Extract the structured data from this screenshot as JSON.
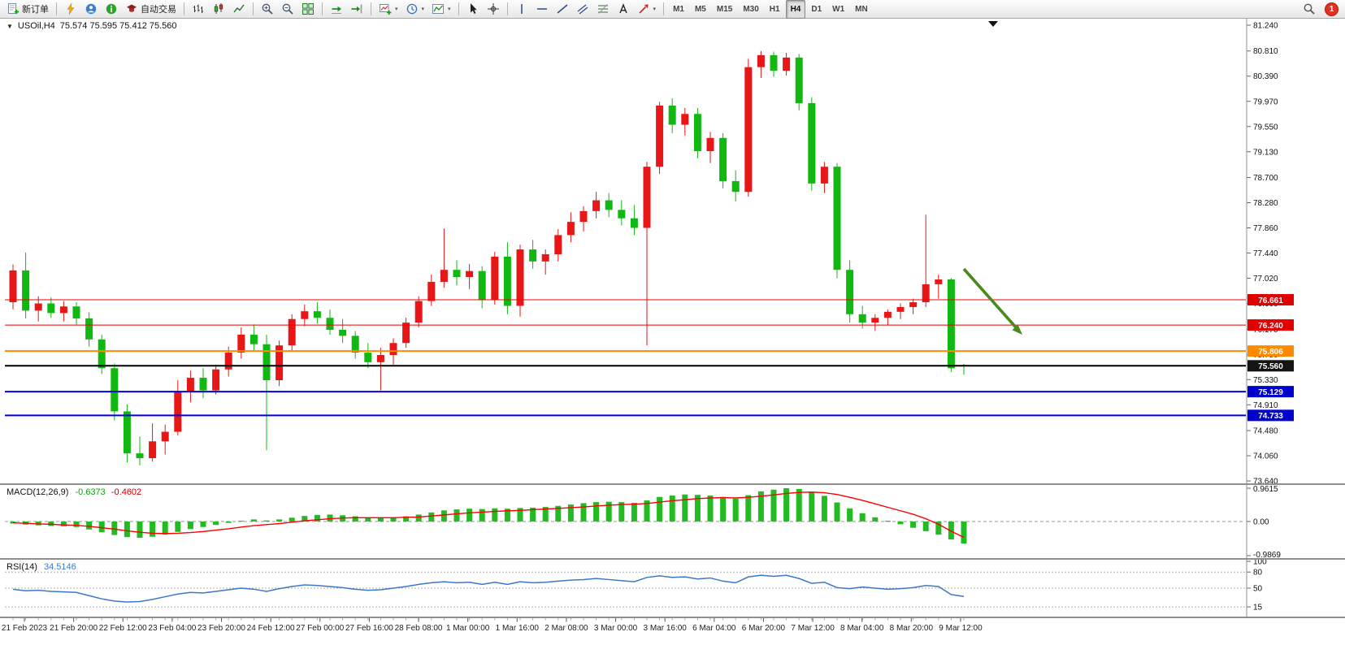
{
  "toolbar": {
    "buttons": [
      {
        "name": "new-order-button",
        "icon": "new-order-icon",
        "label": "新订单"
      },
      {
        "sep": true
      },
      {
        "name": "quick-trade-button",
        "icon": "lightning-icon"
      },
      {
        "name": "community-button",
        "icon": "community-icon"
      },
      {
        "name": "news-button",
        "icon": "info-icon"
      },
      {
        "name": "autotrading-button",
        "icon": "autotrading-icon",
        "label": "自动交易"
      },
      {
        "sep": true
      },
      {
        "name": "bar-chart-button",
        "icon": "bars-icon"
      },
      {
        "name": "candlestick-chart-button",
        "icon": "candles-icon"
      },
      {
        "name": "line-chart-button",
        "icon": "line-icon"
      },
      {
        "sep": true
      },
      {
        "name": "zoom-in-button",
        "icon": "zoom-in-icon"
      },
      {
        "name": "zoom-out-button",
        "icon": "zoom-out-icon"
      },
      {
        "name": "tile-windows-button",
        "icon": "tile-icon"
      },
      {
        "sep": true
      },
      {
        "name": "auto-scroll-button",
        "icon": "autoscroll-icon"
      },
      {
        "name": "chart-shift-button",
        "icon": "shift-icon"
      },
      {
        "sep": true
      },
      {
        "name": "new-chart-button",
        "icon": "new-chart-icon",
        "caret": true
      },
      {
        "name": "profiles-button",
        "icon": "profiles-icon",
        "caret": true
      },
      {
        "name": "templates-button",
        "icon": "templates-icon",
        "caret": true
      },
      {
        "sep": true
      },
      {
        "name": "cursor-button",
        "icon": "cursor-icon"
      },
      {
        "name": "crosshair-button",
        "icon": "crosshair-icon"
      },
      {
        "sep": true
      },
      {
        "name": "vertical-line-button",
        "icon": "vline-icon"
      },
      {
        "name": "horizontal-line-button",
        "icon": "hline-icon"
      },
      {
        "name": "trendline-button",
        "icon": "trend-icon"
      },
      {
        "name": "equidistant-channel-button",
        "icon": "channel-icon"
      },
      {
        "name": "fibonacci-button",
        "icon": "fibo-icon"
      },
      {
        "name": "text-label-button",
        "icon": "text-icon"
      },
      {
        "name": "arrows-button",
        "icon": "arrows-icon",
        "caret": true
      },
      {
        "sep": true
      }
    ],
    "timeframes": [
      "M1",
      "M5",
      "M15",
      "M30",
      "H1",
      "H4",
      "D1",
      "W1",
      "MN"
    ],
    "active_timeframe": "H4",
    "notification_count": "1"
  },
  "chart_header": {
    "expander": "▼",
    "symbol": "USOil,H4",
    "ohlc": "75.574 75.595 75.412 75.560"
  },
  "indicators": {
    "macd": {
      "name": "MACD(12,26,9)",
      "value_main": "-0.6373",
      "value_signal": "-0.4602",
      "axis_max": "0.9615",
      "axis_zero": "0.00",
      "axis_min": "-0.9869"
    },
    "rsi": {
      "name": "RSI(14)",
      "value": "34.5146",
      "axis_labels": [
        "100",
        "80",
        "50",
        "15"
      ],
      "levels": [
        80,
        50,
        15
      ]
    }
  },
  "price_axis": {
    "labels": [
      "81.240",
      "80.810",
      "80.390",
      "79.970",
      "79.550",
      "79.130",
      "78.700",
      "78.280",
      "77.860",
      "77.440",
      "77.020",
      "76.600",
      "76.170",
      "75.750",
      "75.330",
      "74.910",
      "74.480",
      "74.060",
      "73.640"
    ]
  },
  "levels": [
    {
      "label": "76.661",
      "price": 76.661,
      "color": "#ee0000",
      "badge": "#e00000",
      "width": 1
    },
    {
      "label": "76.240",
      "price": 76.24,
      "color": "#ee0000",
      "badge": "#e00000",
      "width": 1
    },
    {
      "label": "75.806",
      "price": 75.806,
      "color": "#ff8a00",
      "badge": "#ff8a00",
      "width": 2
    },
    {
      "label": "75.560",
      "price": 75.56,
      "color": "#000000",
      "badge": "#141414",
      "width": 2
    },
    {
      "label": "75.129",
      "price": 75.129,
      "color": "#0000dd",
      "badge": "#0000cc",
      "width": 2
    },
    {
      "label": "74.733",
      "price": 74.733,
      "color": "#0000dd",
      "badge": "#0000cc",
      "width": 2
    }
  ],
  "time_axis": [
    "21 Feb 2023",
    "21 Feb 20:00",
    "22 Feb 12:00",
    "23 Feb 04:00",
    "23 Feb 20:00",
    "24 Feb 12:00",
    "27 Feb 00:00",
    "27 Feb 16:00",
    "28 Feb 08:00",
    "1 Mar 00:00",
    "1 Mar 16:00",
    "2 Mar 08:00",
    "3 Mar 00:00",
    "3 Mar 16:00",
    "6 Mar 04:00",
    "6 Mar 20:00",
    "7 Mar 12:00",
    "8 Mar 04:00",
    "8 Mar 20:00",
    "9 Mar 12:00"
  ],
  "annotation": {
    "type": "trend-arrow",
    "direction": "down-right",
    "color": "#4a8a1d"
  },
  "chart_data": {
    "type": "candlestick",
    "symbol": "USOil",
    "timeframe": "H4",
    "ohlc_current": {
      "open": 75.574,
      "high": 75.595,
      "low": 75.412,
      "close": 75.56
    },
    "y_range": [
      73.64,
      81.24
    ],
    "up_color": "#e81717",
    "down_color": "#12b812",
    "candles": [
      [
        76.62,
        77.25,
        76.5,
        77.15
      ],
      [
        77.15,
        77.45,
        76.35,
        76.48
      ],
      [
        76.48,
        76.72,
        76.3,
        76.6
      ],
      [
        76.6,
        76.7,
        76.36,
        76.44
      ],
      [
        76.44,
        76.64,
        76.3,
        76.55
      ],
      [
        76.55,
        76.62,
        76.25,
        76.35
      ],
      [
        76.35,
        76.45,
        75.88,
        76.0
      ],
      [
        76.0,
        76.08,
        75.42,
        75.52
      ],
      [
        75.52,
        75.6,
        74.65,
        74.8
      ],
      [
        74.8,
        74.92,
        73.95,
        74.1
      ],
      [
        74.1,
        74.38,
        73.9,
        74.02
      ],
      [
        74.02,
        74.6,
        73.96,
        74.3
      ],
      [
        74.3,
        74.58,
        74.08,
        74.46
      ],
      [
        74.46,
        75.32,
        74.4,
        75.12
      ],
      [
        75.12,
        75.48,
        74.95,
        75.36
      ],
      [
        75.36,
        75.52,
        75.02,
        75.15
      ],
      [
        75.15,
        75.58,
        75.08,
        75.5
      ],
      [
        75.5,
        75.88,
        75.38,
        75.78
      ],
      [
        75.78,
        76.2,
        75.68,
        76.08
      ],
      [
        76.08,
        76.25,
        75.82,
        75.92
      ],
      [
        75.92,
        76.08,
        74.15,
        75.32
      ],
      [
        75.32,
        75.98,
        75.22,
        75.9
      ],
      [
        75.9,
        76.42,
        75.82,
        76.34
      ],
      [
        76.34,
        76.58,
        76.22,
        76.47
      ],
      [
        76.47,
        76.62,
        76.26,
        76.36
      ],
      [
        76.36,
        76.5,
        76.08,
        76.16
      ],
      [
        76.16,
        76.34,
        75.94,
        76.06
      ],
      [
        76.06,
        76.14,
        75.68,
        75.78
      ],
      [
        75.78,
        75.94,
        75.52,
        75.62
      ],
      [
        75.62,
        75.86,
        75.15,
        75.74
      ],
      [
        75.74,
        76.02,
        75.58,
        75.94
      ],
      [
        75.94,
        76.36,
        75.86,
        76.28
      ],
      [
        76.28,
        76.72,
        76.2,
        76.64
      ],
      [
        76.64,
        77.08,
        76.56,
        76.96
      ],
      [
        76.96,
        77.85,
        76.86,
        77.16
      ],
      [
        77.16,
        77.32,
        76.9,
        77.04
      ],
      [
        77.04,
        77.26,
        76.84,
        77.14
      ],
      [
        77.14,
        77.22,
        76.52,
        76.66
      ],
      [
        76.66,
        77.46,
        76.58,
        77.38
      ],
      [
        77.38,
        77.62,
        76.42,
        76.56
      ],
      [
        76.56,
        77.58,
        76.38,
        77.5
      ],
      [
        77.5,
        77.66,
        77.18,
        77.3
      ],
      [
        77.3,
        77.5,
        77.08,
        77.42
      ],
      [
        77.42,
        77.84,
        77.3,
        77.74
      ],
      [
        77.74,
        78.12,
        77.62,
        77.96
      ],
      [
        77.96,
        78.22,
        77.8,
        78.14
      ],
      [
        78.14,
        78.46,
        78.02,
        78.32
      ],
      [
        78.32,
        78.44,
        78.04,
        78.16
      ],
      [
        78.16,
        78.32,
        77.9,
        78.02
      ],
      [
        78.02,
        78.24,
        77.74,
        77.86
      ],
      [
        77.86,
        78.96,
        75.9,
        78.88
      ],
      [
        78.88,
        79.96,
        78.76,
        79.9
      ],
      [
        79.9,
        80.02,
        79.44,
        79.58
      ],
      [
        79.58,
        79.86,
        79.4,
        79.76
      ],
      [
        79.76,
        79.86,
        79.02,
        79.14
      ],
      [
        79.14,
        79.46,
        78.94,
        79.36
      ],
      [
        79.36,
        79.44,
        78.52,
        78.64
      ],
      [
        78.64,
        78.82,
        78.3,
        78.46
      ],
      [
        78.46,
        80.68,
        78.38,
        80.54
      ],
      [
        80.54,
        80.81,
        80.36,
        80.74
      ],
      [
        80.74,
        80.8,
        80.38,
        80.48
      ],
      [
        80.48,
        80.78,
        80.4,
        80.7
      ],
      [
        80.7,
        80.76,
        79.82,
        79.94
      ],
      [
        79.94,
        80.04,
        78.48,
        78.6
      ],
      [
        78.6,
        78.96,
        78.44,
        78.88
      ],
      [
        78.88,
        78.94,
        77.02,
        77.16
      ],
      [
        77.16,
        77.32,
        76.28,
        76.42
      ],
      [
        76.42,
        76.56,
        76.18,
        76.28
      ],
      [
        76.28,
        76.42,
        76.14,
        76.36
      ],
      [
        76.36,
        76.5,
        76.24,
        76.46
      ],
      [
        76.46,
        76.6,
        76.34,
        76.54
      ],
      [
        76.54,
        76.68,
        76.42,
        76.62
      ],
      [
        76.62,
        78.08,
        76.54,
        76.92
      ],
      [
        76.92,
        77.08,
        76.68,
        77.0
      ],
      [
        77.0,
        77.02,
        75.46,
        75.52
      ],
      [
        75.574,
        75.595,
        75.412,
        75.56
      ]
    ],
    "macd": {
      "range": [
        -0.9869,
        0.9615
      ],
      "hist_color": "#22bb22",
      "signal_color": "#ff0000",
      "histogram": [
        -0.06,
        -0.09,
        -0.11,
        -0.13,
        -0.14,
        -0.16,
        -0.23,
        -0.31,
        -0.39,
        -0.45,
        -0.47,
        -0.44,
        -0.38,
        -0.3,
        -0.22,
        -0.16,
        -0.1,
        -0.04,
        0.02,
        0.06,
        0.03,
        0.06,
        0.11,
        0.16,
        0.19,
        0.2,
        0.18,
        0.15,
        0.12,
        0.1,
        0.11,
        0.15,
        0.2,
        0.26,
        0.32,
        0.35,
        0.37,
        0.36,
        0.38,
        0.37,
        0.39,
        0.4,
        0.42,
        0.45,
        0.49,
        0.53,
        0.56,
        0.57,
        0.56,
        0.54,
        0.61,
        0.71,
        0.75,
        0.78,
        0.77,
        0.75,
        0.71,
        0.66,
        0.76,
        0.87,
        0.92,
        0.9615,
        0.94,
        0.86,
        0.74,
        0.55,
        0.38,
        0.24,
        0.12,
        0.02,
        -0.08,
        -0.18,
        -0.28,
        -0.38,
        -0.52,
        -0.6373
      ],
      "signal": [
        -0.04,
        -0.05,
        -0.07,
        -0.08,
        -0.1,
        -0.11,
        -0.14,
        -0.18,
        -0.22,
        -0.27,
        -0.31,
        -0.34,
        -0.35,
        -0.34,
        -0.32,
        -0.29,
        -0.25,
        -0.21,
        -0.16,
        -0.12,
        -0.09,
        -0.06,
        -0.02,
        0.02,
        0.05,
        0.08,
        0.1,
        0.11,
        0.11,
        0.11,
        0.11,
        0.12,
        0.13,
        0.16,
        0.19,
        0.22,
        0.25,
        0.27,
        0.29,
        0.31,
        0.32,
        0.34,
        0.36,
        0.38,
        0.4,
        0.42,
        0.45,
        0.47,
        0.49,
        0.5,
        0.52,
        0.56,
        0.6,
        0.63,
        0.66,
        0.68,
        0.69,
        0.68,
        0.7,
        0.73,
        0.77,
        0.81,
        0.84,
        0.85,
        0.83,
        0.78,
        0.7,
        0.61,
        0.51,
        0.41,
        0.31,
        0.21,
        0.08,
        -0.08,
        -0.28,
        -0.4602
      ]
    },
    "rsi": {
      "range": [
        0,
        100
      ],
      "color": "#3c78c8",
      "values": [
        48,
        45,
        46,
        44,
        43,
        42,
        36,
        30,
        26,
        24,
        25,
        29,
        34,
        39,
        42,
        41,
        44,
        47,
        50,
        48,
        44,
        49,
        53,
        56,
        55,
        53,
        51,
        48,
        46,
        47,
        50,
        53,
        57,
        60,
        62,
        60,
        61,
        57,
        61,
        57,
        62,
        60,
        61,
        63,
        65,
        66,
        68,
        66,
        64,
        62,
        70,
        73,
        70,
        71,
        67,
        69,
        63,
        60,
        71,
        74,
        72,
        74,
        68,
        59,
        61,
        51,
        49,
        52,
        50,
        48,
        49,
        51,
        55,
        53,
        38,
        34.5146
      ]
    }
  }
}
